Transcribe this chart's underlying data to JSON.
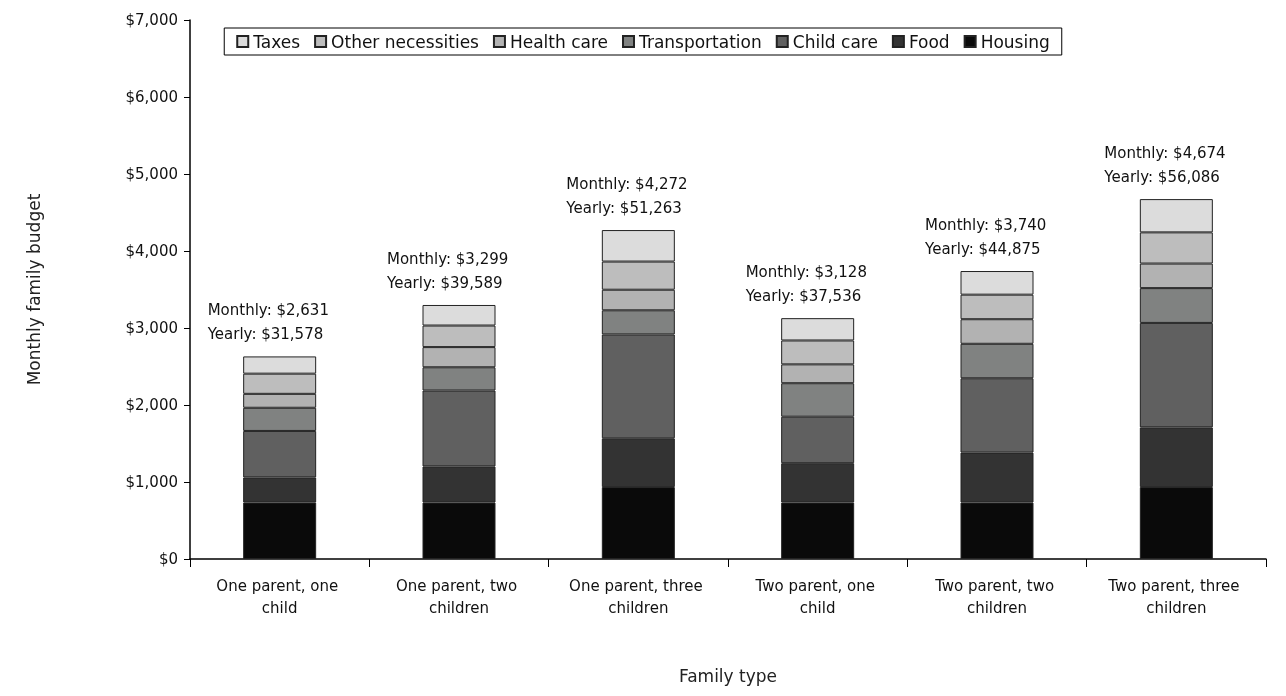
{
  "chart_data": {
    "type": "bar",
    "stacked": true,
    "xlabel": "Family type",
    "ylabel": "Monthly family budget",
    "categories": [
      "One parent, one child",
      "One parent, two children",
      "One parent, three children",
      "Two parent, one child",
      "Two parent, two children",
      "Two parent, three children"
    ],
    "series": [
      {
        "name": "Housing",
        "color": "#0a0a0a",
        "values": [
          733,
          733,
          934,
          733,
          733,
          934
        ]
      },
      {
        "name": "Food",
        "color": "#333333",
        "values": [
          326,
          469,
          633,
          511,
          649,
          775
        ]
      },
      {
        "name": "Child care",
        "color": "#606060",
        "values": [
          604,
          986,
          1349,
          604,
          965,
          1357
        ]
      },
      {
        "name": "Transportation",
        "color": "#808281",
        "values": [
          301,
          302,
          314,
          435,
          448,
          452
        ]
      },
      {
        "name": "Health care",
        "color": "#b2b2b2",
        "values": [
          181,
          262,
          267,
          245,
          319,
          319
        ]
      },
      {
        "name": "Other necessities",
        "color": "#bdbdbd",
        "values": [
          262,
          280,
          366,
          310,
          319,
          405
        ]
      },
      {
        "name": "Taxes",
        "color": "#dcdcdc",
        "values": [
          224,
          267,
          409,
          290,
          307,
          432
        ]
      }
    ],
    "totals": [
      "Monthly: $2,631\nYearly: $31,578",
      "Monthly: $3,299\nYearly: $39,589",
      "Monthly: $4,272\nYearly: $51,263",
      "Monthly: $3,128\nYearly: $37,536",
      "Monthly: $3,740\nYearly: $44,875",
      "Monthly: $4,674\nYearly: $56,086"
    ],
    "ylim": [
      0,
      7000
    ],
    "yticks": [
      {
        "value": 0,
        "label": "$0"
      },
      {
        "value": 1000,
        "label": "$1,000"
      },
      {
        "value": 2000,
        "label": "$2,000"
      },
      {
        "value": 3000,
        "label": "$3,000"
      },
      {
        "value": 4000,
        "label": "$4,000"
      },
      {
        "value": 5000,
        "label": "$5,000"
      },
      {
        "value": 6000,
        "label": "$6,000"
      },
      {
        "value": 7000,
        "label": "$7,000"
      }
    ],
    "grid": false,
    "legend": "top"
  }
}
